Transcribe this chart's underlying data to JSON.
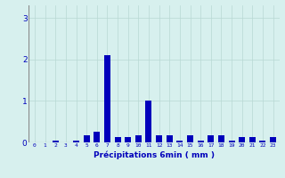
{
  "title": "",
  "xlabel": "Précipitations 6min ( mm )",
  "ylabel": "",
  "background_color": "#d7f0ee",
  "bar_color": "#0000bb",
  "grid_color": "#b8d8d4",
  "xlim": [
    -0.6,
    23.6
  ],
  "ylim": [
    0,
    3.3
  ],
  "yticks": [
    0,
    1,
    2,
    3
  ],
  "xticks": [
    0,
    1,
    2,
    3,
    4,
    5,
    6,
    7,
    8,
    9,
    10,
    11,
    12,
    13,
    14,
    15,
    16,
    17,
    18,
    19,
    20,
    21,
    22,
    23
  ],
  "values": [
    0.0,
    0.0,
    0.05,
    0.0,
    0.05,
    0.18,
    0.25,
    2.1,
    0.12,
    0.12,
    0.18,
    1.0,
    0.18,
    0.18,
    0.05,
    0.18,
    0.05,
    0.18,
    0.18,
    0.05,
    0.12,
    0.12,
    0.05,
    0.12
  ]
}
